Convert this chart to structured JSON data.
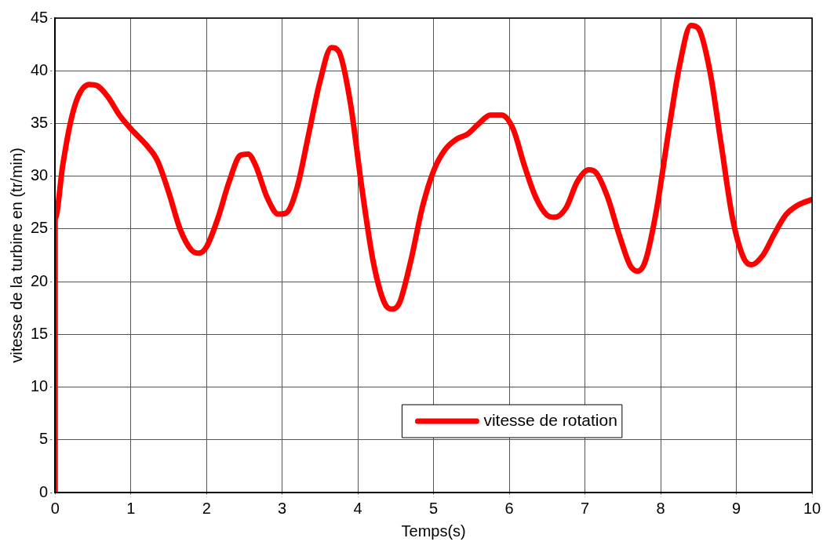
{
  "chart_data": {
    "type": "line",
    "xlabel": "Temps(s)",
    "ylabel": "vitesse de la turbine en (tr/min)",
    "xlim": [
      0,
      10
    ],
    "ylim": [
      0,
      45
    ],
    "xticks": [
      0,
      1,
      2,
      3,
      4,
      5,
      6,
      7,
      8,
      9,
      10
    ],
    "yticks": [
      0,
      5,
      10,
      15,
      20,
      25,
      30,
      35,
      40,
      45
    ],
    "grid": true,
    "legend": "bottom",
    "line_style": "solid",
    "marker": "none",
    "series": [
      {
        "name": "vitesse de rotation",
        "color": "#ff0000",
        "x": [
          0,
          0,
          0.1,
          0.2,
          0.3,
          0.45,
          0.55,
          0.7,
          0.85,
          1.0,
          1.2,
          1.35,
          1.5,
          1.65,
          1.8,
          1.9,
          2.0,
          2.15,
          2.3,
          2.45,
          2.55,
          2.65,
          2.8,
          2.95,
          3.05,
          3.2,
          3.35,
          3.5,
          3.65,
          3.75,
          3.9,
          4.05,
          4.2,
          4.35,
          4.45,
          4.55,
          4.7,
          4.85,
          5.0,
          5.15,
          5.3,
          5.45,
          5.6,
          5.75,
          5.9,
          6.05,
          6.2,
          6.35,
          6.5,
          6.6,
          6.75,
          6.9,
          7.05,
          7.15,
          7.3,
          7.45,
          7.6,
          7.7,
          7.8,
          7.95,
          8.1,
          8.25,
          8.4,
          8.5,
          8.65,
          8.8,
          8.95,
          9.1,
          9.2,
          9.35,
          9.5,
          9.65,
          9.8,
          10
        ],
        "values": [
          0,
          26,
          31,
          35,
          37.5,
          38.7,
          38.6,
          37.5,
          35.8,
          34.5,
          33,
          31.5,
          28.5,
          25,
          23,
          22.7,
          23.3,
          26,
          29.5,
          32,
          32.1,
          31,
          28,
          26.4,
          26.5,
          29,
          34,
          39,
          42.2,
          41.8,
          37,
          29,
          22,
          18,
          17.4,
          18,
          22,
          27,
          30.5,
          32.5,
          33.5,
          34,
          35,
          35.8,
          35.8,
          34.5,
          31,
          28,
          26.3,
          26.1,
          27,
          29.5,
          30.6,
          30.3,
          28,
          24.5,
          21.5,
          21,
          22,
          27,
          34,
          40.5,
          44.3,
          44,
          40,
          33,
          26,
          22.2,
          21.6,
          22.5,
          24.5,
          26.3,
          27.2,
          27.8
        ]
      }
    ]
  }
}
